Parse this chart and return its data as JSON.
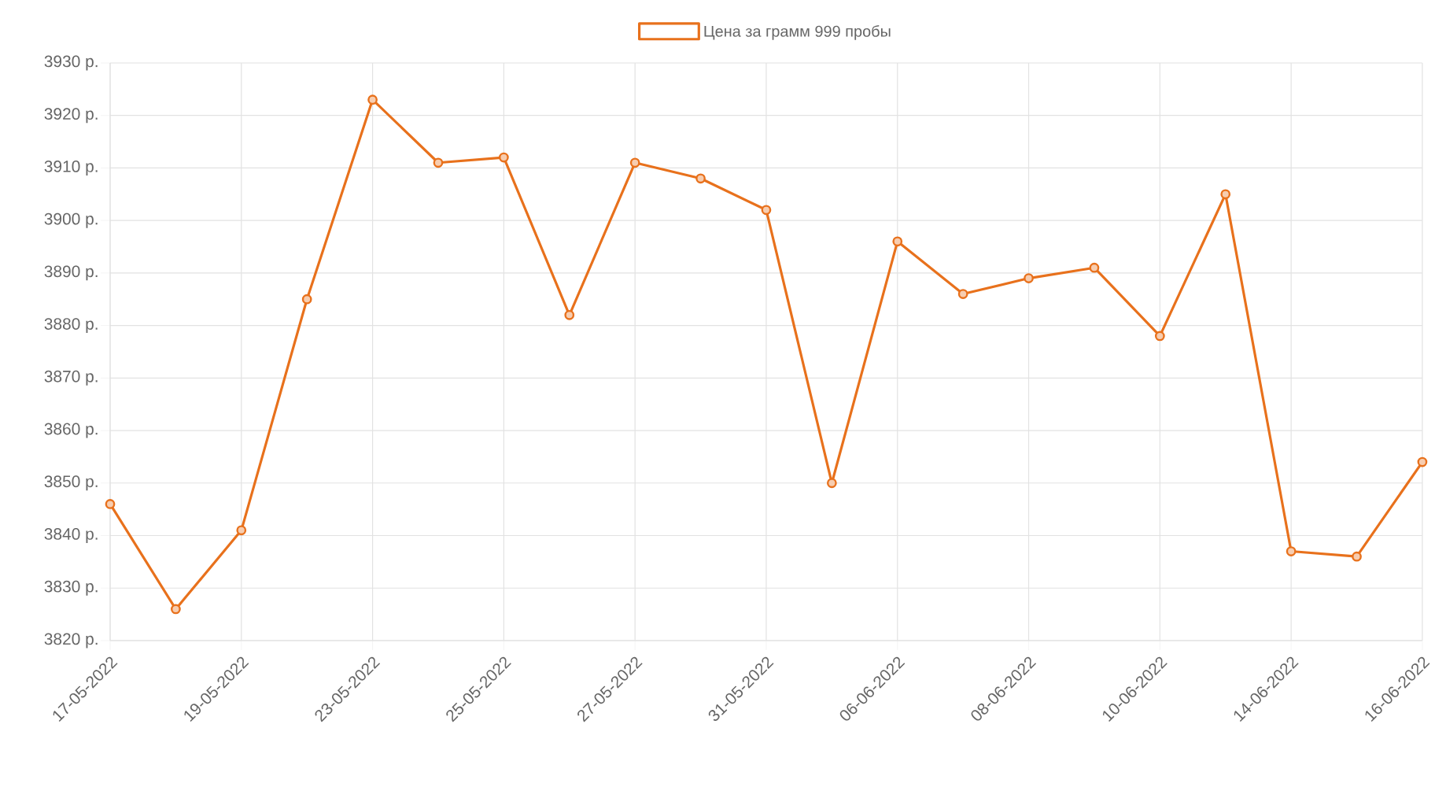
{
  "chart_data": {
    "type": "line",
    "categories": [
      "17-05-2022",
      null,
      "19-05-2022",
      null,
      "23-05-2022",
      null,
      "25-05-2022",
      null,
      "27-05-2022",
      null,
      "31-05-2022",
      null,
      "06-06-2022",
      null,
      "08-06-2022",
      null,
      "10-06-2022",
      null,
      "14-06-2022",
      null,
      "16-06-2022"
    ],
    "series": [
      {
        "name": "Цена за грамм 999 пробы",
        "color": "#e8711c",
        "values": [
          3846,
          3826,
          3841,
          3885,
          3923,
          3911,
          3912,
          3882,
          3911,
          3908,
          3902,
          3850,
          3896,
          3886,
          3889,
          3891,
          3878,
          3905,
          3837,
          3836,
          3854
        ]
      }
    ],
    "ylim": [
      3820,
      3930
    ],
    "yticks": [
      {
        "value": 3820,
        "label": "3820 р."
      },
      {
        "value": 3830,
        "label": "3830 р."
      },
      {
        "value": 3840,
        "label": "3840 р."
      },
      {
        "value": 3850,
        "label": "3850 р."
      },
      {
        "value": 3860,
        "label": "3860 р."
      },
      {
        "value": 3870,
        "label": "3870 р."
      },
      {
        "value": 3880,
        "label": "3880 р."
      },
      {
        "value": 3890,
        "label": "3890 р."
      },
      {
        "value": 3900,
        "label": "3900 р."
      },
      {
        "value": 3910,
        "label": "3910 р."
      },
      {
        "value": 3920,
        "label": "3920 р."
      },
      {
        "value": 3930,
        "label": "3930 р."
      }
    ],
    "grid": true,
    "legend": "top",
    "marker": "circle",
    "line_style": "solid"
  }
}
